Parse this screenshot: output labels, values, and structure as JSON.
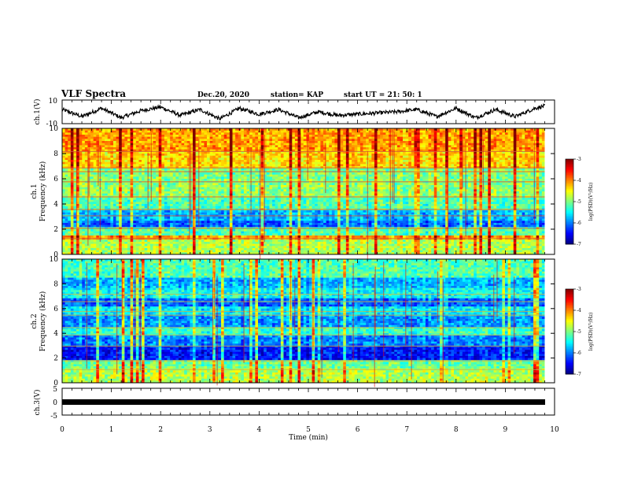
{
  "header": {
    "title": "VLF Spectra",
    "date": "Dec.20, 2020",
    "station": "station= KAP",
    "start": "start  UT  =   21: 50: 1"
  },
  "chart_data": [
    {
      "type": "line",
      "name": "ch1-waveform",
      "ylabel": "ch.1(V)",
      "ylim": [
        -10,
        10
      ],
      "yticks": [
        "10",
        "-10"
      ],
      "xlim": [
        0,
        10
      ],
      "x": [
        0.0,
        0.4,
        0.8,
        1.2,
        1.6,
        2.0,
        2.4,
        2.8,
        3.2,
        3.6,
        4.0,
        4.4,
        4.8,
        5.2,
        5.6,
        6.0,
        6.4,
        6.8,
        7.2,
        7.6,
        8.0,
        8.4,
        8.8,
        9.2,
        9.6,
        9.8
      ],
      "y": [
        2,
        -4,
        3,
        -5,
        1,
        4,
        -3,
        2,
        -6,
        3,
        -2,
        2,
        -5,
        0,
        -3,
        -2,
        -1,
        0,
        2,
        -4,
        3,
        -5,
        2,
        -4,
        3,
        5
      ]
    },
    {
      "type": "heatmap",
      "name": "ch1-spectrogram",
      "ylabel": "ch.1 Frequency (kHz)",
      "ylim": [
        0,
        10
      ],
      "yticks": [
        "0",
        "2",
        "4",
        "6",
        "8",
        "10"
      ],
      "xlim": [
        0,
        9.8
      ],
      "colorbar": {
        "label": "log(PSD)(V²/Hz)",
        "min": -7,
        "max": -3,
        "ticks": [
          "-3",
          "-4",
          "-5",
          "-6",
          "-7"
        ]
      }
    },
    {
      "type": "heatmap",
      "name": "ch2-spectrogram",
      "ylabel": "ch.2 Frequency (kHz)",
      "ylim": [
        0,
        10
      ],
      "yticks": [
        "0",
        "2",
        "4",
        "6",
        "8",
        "10"
      ],
      "xlim": [
        0,
        9.8
      ],
      "colorbar": {
        "label": "log(PSD)(V²/Hz)",
        "min": -7,
        "max": -3,
        "ticks": [
          "-3",
          "-4",
          "-5",
          "-6",
          "-7"
        ]
      }
    },
    {
      "type": "line",
      "name": "ch3-waveform",
      "ylabel": "ch.3(V)",
      "ylim": [
        -5,
        5
      ],
      "yticks": [
        "5",
        "0",
        "-5"
      ],
      "xlim": [
        0,
        10
      ],
      "x": [
        0,
        9.8
      ],
      "y": [
        0,
        0
      ]
    }
  ],
  "xaxis": {
    "label": "Time  (min)",
    "ticks": [
      "0",
      "1",
      "2",
      "3",
      "4",
      "5",
      "6",
      "7",
      "8",
      "9",
      "10"
    ]
  }
}
